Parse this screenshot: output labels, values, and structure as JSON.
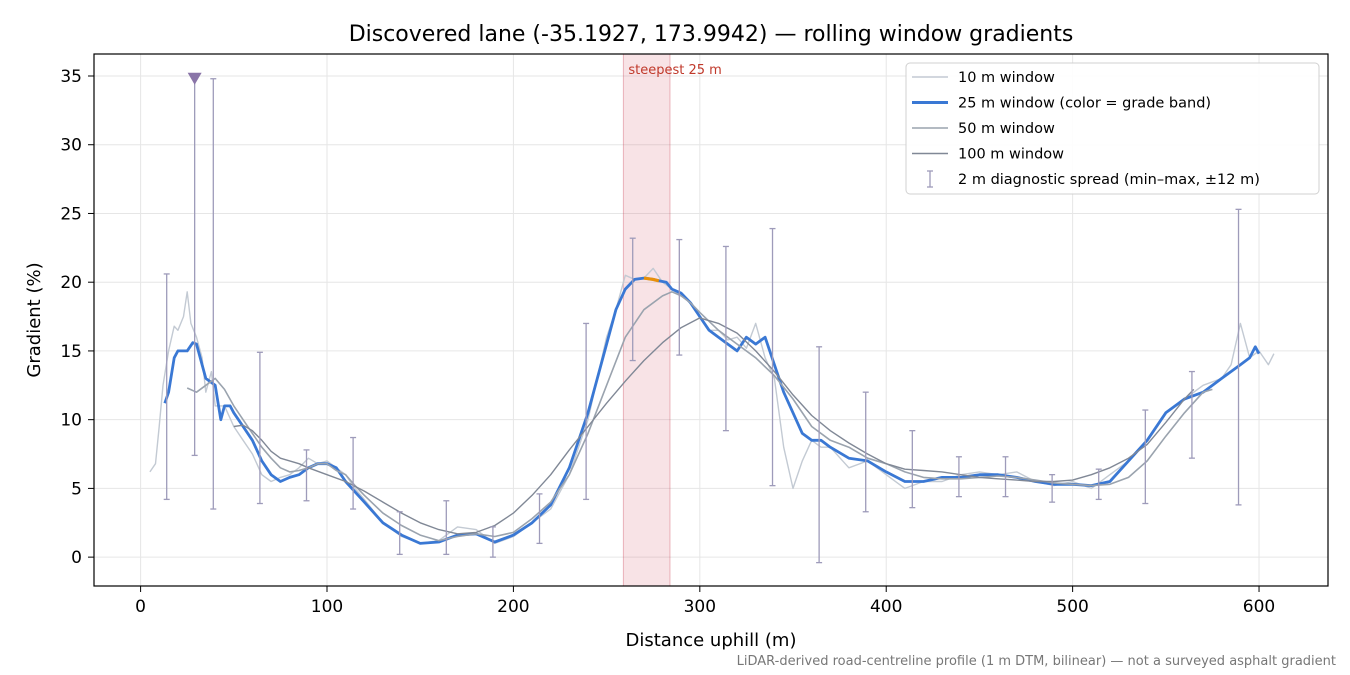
{
  "chart_data": {
    "type": "line",
    "title": "Discovered lane (-35.1927, 173.9942) — rolling window gradients",
    "xlabel": "Distance uphill (m)",
    "ylabel": "Gradient (%)",
    "xlim": [
      -25,
      637
    ],
    "ylim": [
      -2.1,
      36.6
    ],
    "xticks": [
      0,
      100,
      200,
      300,
      400,
      500,
      600
    ],
    "yticks": [
      0,
      5,
      10,
      15,
      20,
      25,
      30,
      35
    ],
    "grid": true,
    "legend_position": "top-right",
    "footnote": "LiDAR-derived road-centreline profile (1 m DTM, bilinear) — not a surveyed asphalt gradient",
    "annotation": {
      "text": "steepest 25 m",
      "x_range": [
        259,
        284
      ]
    },
    "peak_marker": {
      "x": 29,
      "y": 34.8
    },
    "legend": [
      {
        "label": "10 m window",
        "kind": "line",
        "color": "#c3cad3"
      },
      {
        "label": "25 m window (color = grade band)",
        "kind": "line",
        "color": "#3a78d4"
      },
      {
        "label": "50 m window",
        "kind": "line",
        "color": "#9aa3ae"
      },
      {
        "label": "100 m window",
        "kind": "line",
        "color": "#808896"
      },
      {
        "label": "2 m diagnostic spread (min–max, ±12 m)",
        "kind": "errorbar",
        "color": "#9e9bba"
      }
    ],
    "series": [
      {
        "name": "10 m window",
        "color": "#c3cad3",
        "x": [
          5,
          8,
          10,
          12,
          15,
          18,
          20,
          23,
          25,
          27,
          30,
          33,
          35,
          38,
          40,
          45,
          50,
          55,
          60,
          65,
          70,
          75,
          80,
          85,
          90,
          95,
          100,
          105,
          110,
          115,
          120,
          130,
          140,
          150,
          160,
          170,
          180,
          190,
          200,
          210,
          220,
          230,
          240,
          245,
          250,
          255,
          260,
          265,
          270,
          275,
          280,
          285,
          290,
          295,
          300,
          305,
          310,
          315,
          320,
          325,
          330,
          335,
          340,
          345,
          350,
          355,
          360,
          365,
          370,
          380,
          390,
          400,
          410,
          420,
          430,
          440,
          450,
          460,
          470,
          480,
          490,
          500,
          510,
          520,
          530,
          540,
          550,
          560,
          570,
          580,
          585,
          590,
          595,
          600,
          605,
          608
        ],
        "y": [
          6.2,
          6.8,
          9.5,
          12.5,
          15,
          16.8,
          16.5,
          17.5,
          19.3,
          17,
          16,
          14.5,
          12,
          13.5,
          11,
          11,
          9.5,
          8.5,
          7.5,
          6,
          5.5,
          5.8,
          6,
          6.5,
          7.2,
          6.8,
          7,
          6.5,
          6,
          5,
          4.2,
          2.5,
          1.5,
          1,
          1.2,
          2.2,
          2,
          1,
          1.5,
          2.5,
          3.5,
          6,
          10,
          13,
          16,
          18,
          20.5,
          20.2,
          20.3,
          21,
          20,
          19.5,
          19,
          18.5,
          17.5,
          16.5,
          16.5,
          15.8,
          16,
          15.2,
          17,
          14.5,
          13,
          8,
          5,
          7,
          8.5,
          8,
          8,
          6.5,
          7,
          6,
          5,
          5.5,
          5.5,
          6,
          6.2,
          6,
          6.2,
          5.5,
          5.2,
          5.5,
          5,
          6,
          7,
          8.5,
          10.5,
          11.5,
          12.5,
          13,
          14,
          17,
          14.5,
          15,
          14,
          14.8
        ]
      },
      {
        "name": "25 m window (color = grade band)",
        "color": "#3a78d4",
        "highlight": {
          "x_range": [
            266,
            278
          ],
          "color": "#e8900a"
        },
        "x": [
          13,
          15,
          18,
          20,
          25,
          28,
          30,
          33,
          35,
          40,
          43,
          45,
          48,
          50,
          55,
          60,
          65,
          70,
          75,
          80,
          85,
          90,
          95,
          100,
          105,
          110,
          120,
          130,
          140,
          150,
          160,
          170,
          180,
          190,
          200,
          210,
          220,
          230,
          240,
          250,
          255,
          260,
          265,
          270,
          275,
          278,
          282,
          285,
          290,
          295,
          300,
          305,
          310,
          315,
          320,
          325,
          330,
          335,
          340,
          345,
          350,
          355,
          360,
          365,
          370,
          380,
          390,
          400,
          410,
          420,
          430,
          440,
          450,
          460,
          470,
          480,
          490,
          500,
          510,
          520,
          530,
          540,
          550,
          560,
          570,
          580,
          590,
          595,
          598,
          600
        ],
        "y": [
          11.2,
          12,
          14.5,
          15,
          15,
          15.6,
          15.5,
          14,
          13,
          12.5,
          10,
          11,
          11,
          10.5,
          9.5,
          8.5,
          7,
          6,
          5.5,
          5.8,
          6,
          6.5,
          6.8,
          6.8,
          6.5,
          5.5,
          4,
          2.5,
          1.6,
          1,
          1.1,
          1.6,
          1.7,
          1.1,
          1.6,
          2.5,
          3.8,
          6.5,
          10.5,
          15.5,
          18,
          19.5,
          20.2,
          20.3,
          20.2,
          20.1,
          20,
          19.5,
          19.2,
          18.5,
          17.5,
          16.5,
          16,
          15.5,
          15,
          16,
          15.5,
          16,
          14,
          12,
          10.5,
          9,
          8.5,
          8.5,
          8,
          7.2,
          7,
          6.2,
          5.5,
          5.5,
          5.8,
          5.8,
          6,
          6,
          5.8,
          5.5,
          5.3,
          5.3,
          5.2,
          5.5,
          7,
          8.5,
          10.5,
          11.5,
          12,
          13,
          14,
          14.5,
          15.3,
          14.8
        ]
      },
      {
        "name": "50 m window",
        "color": "#9aa3ae",
        "x": [
          25,
          30,
          35,
          40,
          45,
          50,
          55,
          60,
          65,
          70,
          75,
          80,
          85,
          90,
          95,
          100,
          105,
          110,
          115,
          120,
          130,
          140,
          150,
          160,
          170,
          180,
          190,
          200,
          210,
          220,
          230,
          240,
          250,
          260,
          270,
          280,
          285,
          290,
          295,
          300,
          310,
          320,
          330,
          340,
          350,
          360,
          370,
          380,
          390,
          400,
          410,
          420,
          430,
          440,
          450,
          460,
          470,
          480,
          490,
          500,
          510,
          520,
          530,
          540,
          550,
          560,
          570,
          575
        ],
        "y": [
          12.3,
          12,
          12.5,
          13,
          12.2,
          11,
          10,
          9,
          8,
          7.2,
          6.5,
          6.2,
          6.3,
          6.5,
          6.8,
          6.8,
          6.3,
          6,
          5.2,
          4.5,
          3.2,
          2.3,
          1.6,
          1.2,
          1.5,
          1.7,
          1.5,
          1.8,
          2.8,
          4,
          6,
          9,
          12.5,
          16,
          18,
          19,
          19.3,
          19,
          18.5,
          17.8,
          16.5,
          15.5,
          14.5,
          13.2,
          11.5,
          9.5,
          8.5,
          8,
          7.2,
          6.8,
          6.2,
          5.8,
          5.7,
          5.7,
          5.8,
          5.9,
          5.8,
          5.6,
          5.4,
          5.3,
          5.2,
          5.3,
          5.8,
          7,
          8.8,
          10.5,
          12,
          12.2
        ]
      },
      {
        "name": "100 m window",
        "color": "#808896",
        "x": [
          50,
          55,
          60,
          65,
          70,
          75,
          80,
          85,
          90,
          100,
          110,
          120,
          130,
          140,
          150,
          160,
          170,
          180,
          190,
          200,
          210,
          220,
          230,
          240,
          250,
          260,
          270,
          280,
          290,
          300,
          310,
          320,
          330,
          340,
          350,
          360,
          370,
          380,
          390,
          400,
          410,
          420,
          430,
          440,
          450,
          460,
          470,
          480,
          490,
          500,
          510,
          520,
          530,
          540,
          550,
          560,
          565
        ],
        "y": [
          9.5,
          9.6,
          9.2,
          8.5,
          7.7,
          7.2,
          7,
          6.8,
          6.5,
          6,
          5.5,
          4.8,
          4,
          3.2,
          2.5,
          2,
          1.7,
          1.8,
          2.3,
          3.2,
          4.5,
          6,
          7.8,
          9.5,
          11.2,
          12.8,
          14.3,
          15.6,
          16.7,
          17.4,
          17,
          16.3,
          15,
          13.5,
          11.8,
          10.3,
          9.2,
          8.3,
          7.5,
          6.8,
          6.4,
          6.3,
          6.2,
          6,
          5.8,
          5.7,
          5.6,
          5.5,
          5.5,
          5.6,
          6,
          6.5,
          7.2,
          8.2,
          9.8,
          11.5,
          12.2
        ]
      }
    ],
    "errorbars": {
      "name": "2 m diagnostic spread (min–max, ±12 m)",
      "color": "#9e9bba",
      "x": [
        14,
        29,
        39,
        64,
        89,
        114,
        139,
        164,
        189,
        214,
        239,
        264,
        289,
        314,
        339,
        364,
        389,
        414,
        439,
        464,
        489,
        514,
        539,
        564,
        589
      ],
      "low": [
        4.2,
        7.4,
        3.5,
        3.9,
        4.1,
        3.5,
        0.2,
        0.2,
        0.0,
        1.0,
        4.2,
        14.3,
        14.7,
        9.2,
        5.2,
        -0.4,
        3.3,
        3.6,
        4.4,
        4.4,
        4.0,
        4.2,
        3.9,
        7.2,
        3.8
      ],
      "high": [
        20.6,
        34.8,
        34.8,
        14.9,
        7.8,
        8.7,
        3.3,
        4.1,
        2.2,
        4.6,
        17.0,
        23.2,
        23.1,
        22.6,
        23.9,
        15.3,
        12.0,
        9.2,
        7.3,
        7.3,
        6.0,
        6.4,
        10.7,
        13.5,
        25.3
      ]
    }
  }
}
